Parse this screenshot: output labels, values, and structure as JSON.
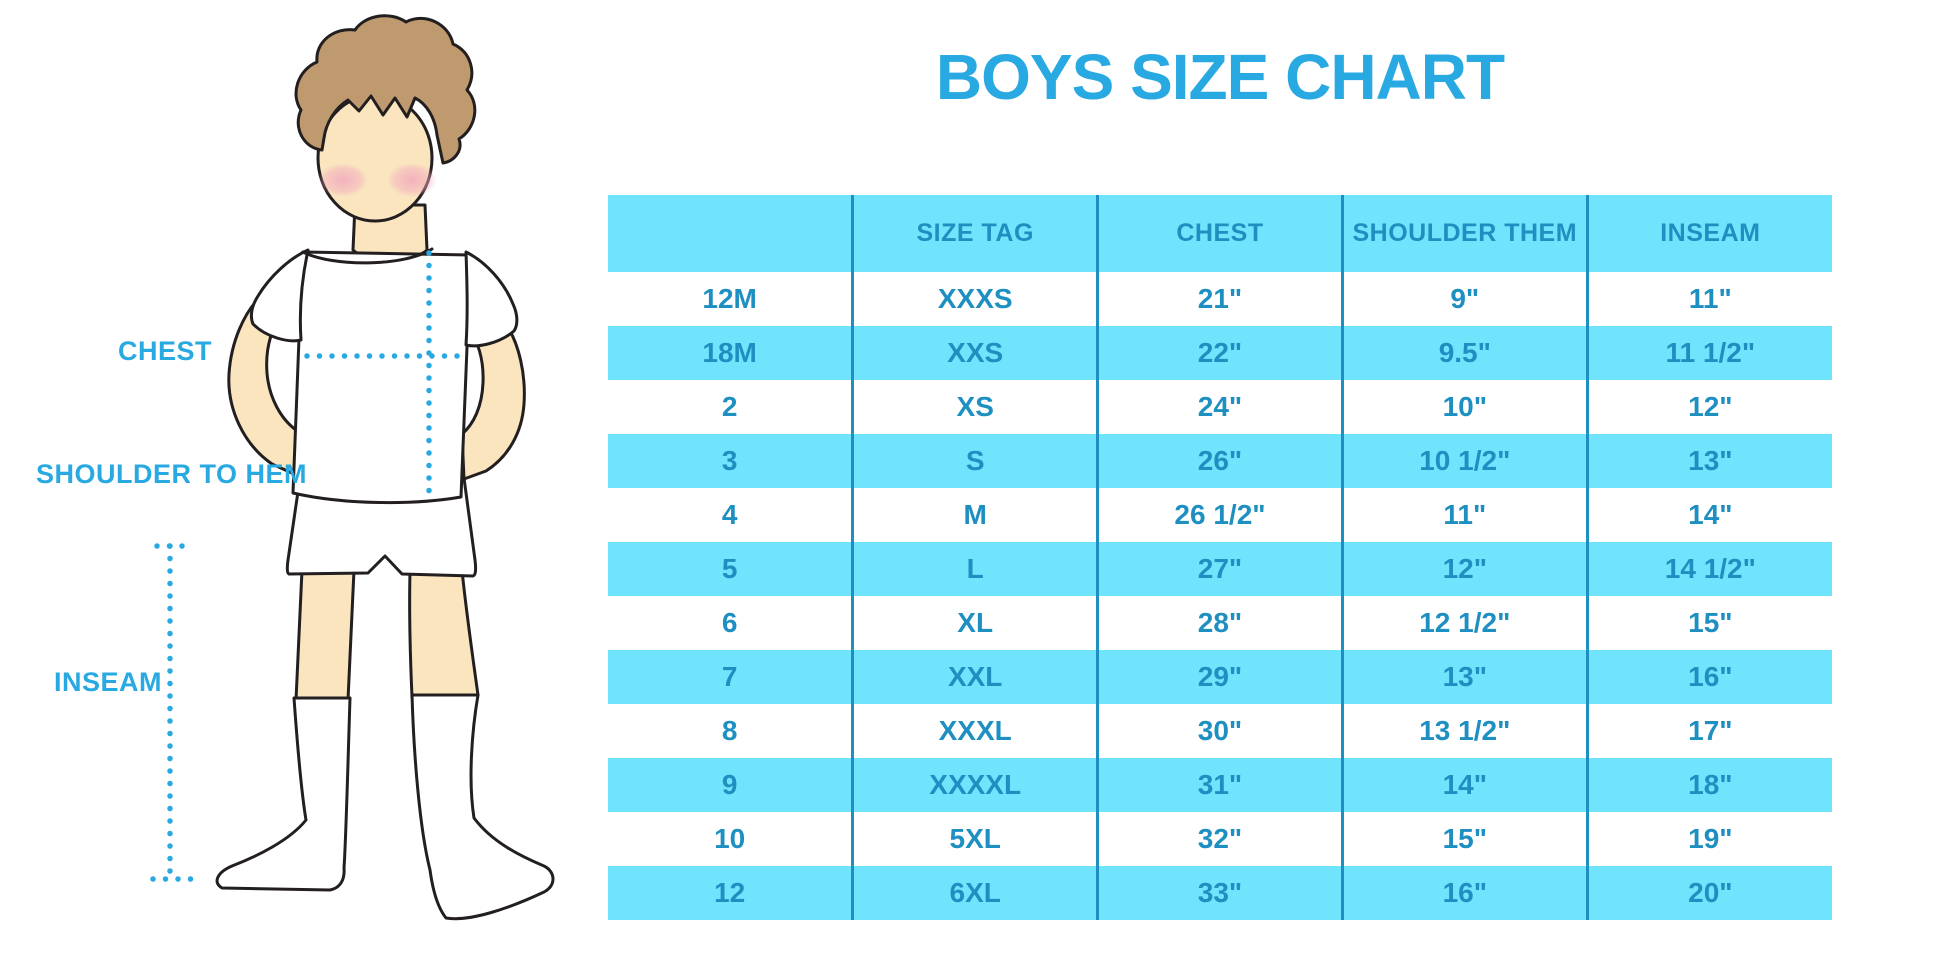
{
  "title": "BOYS SIZE CHART",
  "figure": {
    "labels": {
      "chest": "CHEST",
      "shoulder_to_hem": "SHOULDER TO HEM",
      "inseam": "INSEAM"
    }
  },
  "chart_data": {
    "type": "table",
    "title": "BOYS SIZE CHART",
    "columns": [
      "",
      "SIZE TAG",
      "CHEST",
      "SHOULDER THEM",
      "INSEAM"
    ],
    "rows": [
      [
        "12M",
        "XXXS",
        "21\"",
        "9\"",
        "11\""
      ],
      [
        "18M",
        "XXS",
        "22\"",
        "9.5\"",
        "11 1/2\""
      ],
      [
        "2",
        "XS",
        "24\"",
        "10\"",
        "12\""
      ],
      [
        "3",
        "S",
        "26\"",
        "10 1/2\"",
        "13\""
      ],
      [
        "4",
        "M",
        "26 1/2\"",
        "11\"",
        "14\""
      ],
      [
        "5",
        "L",
        "27\"",
        "12\"",
        "14 1/2\""
      ],
      [
        "6",
        "XL",
        "28\"",
        "12 1/2\"",
        "15\""
      ],
      [
        "7",
        "XXL",
        "29\"",
        "13\"",
        "16\""
      ],
      [
        "8",
        "XXXL",
        "30\"",
        "13 1/2\"",
        "17\""
      ],
      [
        "9",
        "XXXXL",
        "31\"",
        "14\"",
        "18\""
      ],
      [
        "10",
        "5XL",
        "32\"",
        "15\"",
        "19\""
      ],
      [
        "12",
        "6XL",
        "33\"",
        "16\"",
        "20\""
      ]
    ],
    "striped_row_indices": [
      1,
      3,
      5,
      7,
      9,
      11
    ],
    "grid": "vertical column dividers only",
    "legend_position": "none"
  },
  "colors": {
    "title_blue": "#29A9E1",
    "label_blue": "#29A9E1",
    "band_cyan": "#70E4FC",
    "table_text_teal": "#1E8FC1",
    "divider_teal": "#1E8FC1",
    "dotted_line_blue": "#29A9E1",
    "skin": "#FAE5BF",
    "hair_brown": "#BE9A6E",
    "blush_pink": "#F2A9BE",
    "outline_black": "#231F20",
    "background": "#FFFFFF"
  }
}
